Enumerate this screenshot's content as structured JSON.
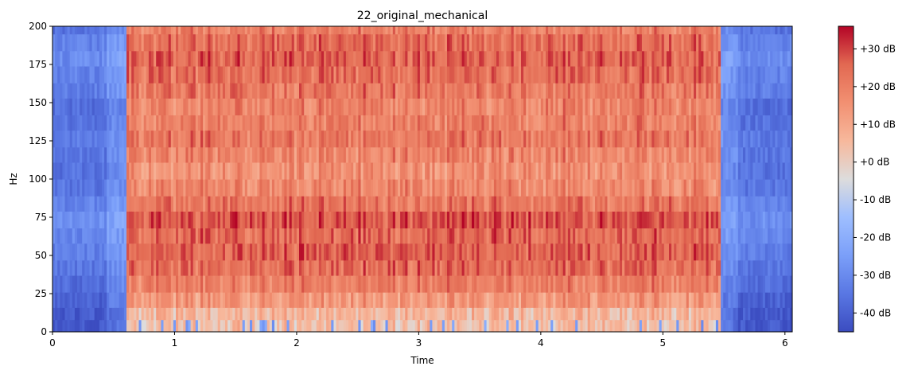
{
  "chart_data": {
    "type": "heatmap",
    "title": "22_original_mechanical",
    "xlabel": "Time",
    "ylabel": "Hz",
    "xlim": [
      0,
      6.06
    ],
    "ylim": [
      0,
      200
    ],
    "x_ticks": [
      0,
      1,
      2,
      3,
      4,
      5,
      6
    ],
    "x_tick_labels": [
      "0",
      "1",
      "2",
      "3",
      "4",
      "5",
      "6"
    ],
    "y_ticks": [
      0,
      25,
      50,
      75,
      100,
      125,
      150,
      175,
      200
    ],
    "y_tick_labels": [
      "0",
      "25",
      "50",
      "75",
      "100",
      "125",
      "150",
      "175",
      "200"
    ],
    "colorbar": {
      "colormap": "coolwarm",
      "vmin": -45,
      "vmax": 36,
      "ticks": [
        -40,
        -30,
        -20,
        -10,
        0,
        10,
        20,
        30
      ],
      "tick_labels": [
        "-40 dB",
        "-30 dB",
        "-20 dB",
        "-10 dB",
        "+0 dB",
        "+10 dB",
        "+20 dB",
        "+30 dB"
      ]
    },
    "signal_segment": {
      "start_time": 0.6,
      "end_time": 5.47
    },
    "band_profile_db": {
      "freq_bins_hz": [
        0,
        8,
        16,
        26,
        37,
        47,
        58,
        68,
        79,
        89,
        100,
        111,
        121,
        132,
        142,
        153,
        163,
        174,
        184,
        195
      ],
      "active_db": [
        4,
        6,
        14,
        20,
        24,
        26,
        25,
        28,
        22,
        18,
        16,
        19,
        22,
        20,
        19,
        22,
        24,
        26,
        24,
        20
      ],
      "background_db": [
        -42,
        -42,
        -40,
        -37,
        -35,
        -33,
        -31,
        -29,
        -32,
        -35,
        -36,
        -35,
        -34,
        -36,
        -37,
        -33,
        -32,
        -30,
        -32,
        -36
      ]
    },
    "grid": false
  }
}
